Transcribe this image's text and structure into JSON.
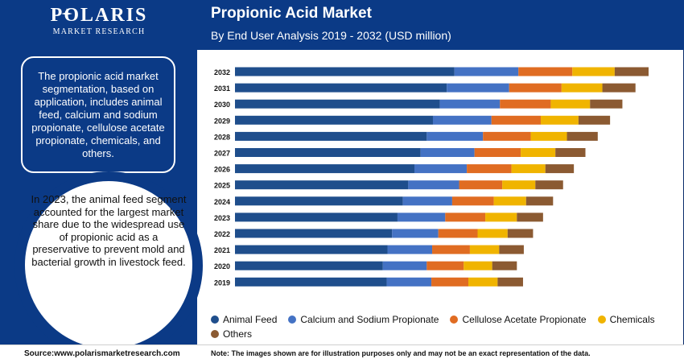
{
  "brand": {
    "name": "POLARIS",
    "tagline": "MARKET RESEARCH"
  },
  "header": {
    "title": "Propionic Acid Market",
    "subtitle": "By End User Analysis 2019 - 2032 (USD million)"
  },
  "sidebar": {
    "summary": "The propionic acid market segmentation, based on application, includes animal feed, calcium and sodium propionate, cellulose acetate propionate, chemicals, and others.",
    "highlight": "In 2023, the animal feed segment accounted for the largest market share due to the widespread use of propionic acid as a preservative to prevent mold and bacterial growth in livestock feed."
  },
  "footer": {
    "source": "Source:www.polarismarketresearch.com",
    "note": "Note: The images shown are for illustration purposes only and may not be an exact representation of the data."
  },
  "colors": {
    "brand_blue": "#0b3a86",
    "animal_feed": "#1f4e8c",
    "calcium": "#4472c4",
    "cellulose": "#e06c22",
    "chemicals": "#f0b400",
    "others": "#8b5a32"
  },
  "chart_data": {
    "type": "bar",
    "orientation": "horizontal",
    "stacked": true,
    "categories": [
      "2032",
      "2031",
      "2030",
      "2029",
      "2028",
      "2027",
      "2026",
      "2025",
      "2024",
      "2023",
      "2022",
      "2021",
      "2020",
      "2019"
    ],
    "series": [
      {
        "name": "Animal Feed",
        "color": "#1f4e8c",
        "values": [
          285,
          275,
          266,
          257,
          249,
          241,
          233,
          225,
          218,
          211,
          204,
          198,
          192,
          197
        ]
      },
      {
        "name": "Calcium and Sodium Propionate",
        "color": "#4472c4",
        "values": [
          83,
          81,
          78,
          76,
          73,
          70,
          68,
          66,
          64,
          62,
          60,
          58,
          57,
          58
        ]
      },
      {
        "name": "Cellulose Acetate Propionate",
        "color": "#e06c22",
        "values": [
          70,
          68,
          66,
          64,
          62,
          60,
          58,
          56,
          54,
          52,
          51,
          49,
          48,
          48
        ]
      },
      {
        "name": "Chemicals",
        "color": "#f0b400",
        "values": [
          55,
          53,
          51,
          49,
          47,
          45,
          44,
          43,
          42,
          41,
          39,
          38,
          37,
          38
        ]
      },
      {
        "name": "Others",
        "color": "#8b5a32",
        "values": [
          44,
          43,
          42,
          41,
          40,
          39,
          37,
          36,
          35,
          34,
          33,
          32,
          32,
          33
        ]
      }
    ],
    "xlim": [
      0,
      560
    ],
    "grid": false,
    "legend": "bottom"
  }
}
